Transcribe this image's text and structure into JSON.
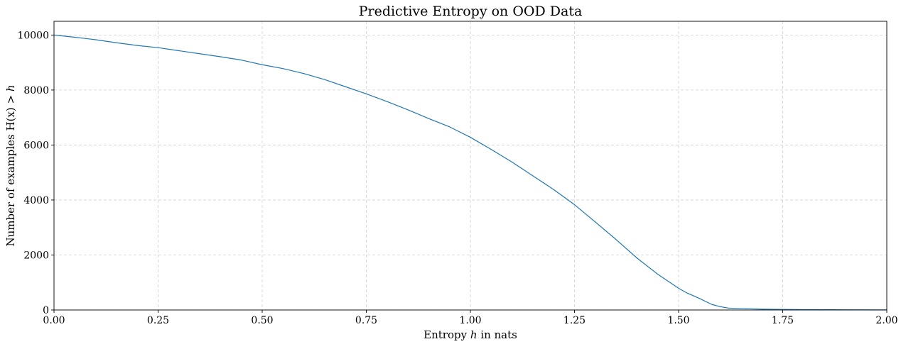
{
  "chart_data": {
    "type": "line",
    "title": "Predictive Entropy on OOD Data",
    "xlabel_prefix": "Entropy ",
    "xlabel_var": "h",
    "xlabel_suffix": " in nats",
    "ylabel_prefix": "Number of examples H(x) > ",
    "ylabel_var": "h",
    "xlim": [
      0,
      2.0
    ],
    "ylim": [
      0,
      10500
    ],
    "x_ticks": [
      0,
      0.25,
      0.5,
      0.75,
      1.0,
      1.25,
      1.5,
      1.75,
      2.0
    ],
    "x_tick_labels": [
      "0.00",
      "0.25",
      "0.50",
      "0.75",
      "1.00",
      "1.25",
      "1.50",
      "1.75",
      "2.00"
    ],
    "y_ticks": [
      0,
      2000,
      4000,
      6000,
      8000,
      10000
    ],
    "y_tick_labels": [
      "0",
      "2000",
      "4000",
      "6000",
      "8000",
      "10000"
    ],
    "grid": true,
    "series": [
      {
        "color": "#1f77b4",
        "x": [
          0.0,
          0.05,
          0.1,
          0.15,
          0.2,
          0.25,
          0.3,
          0.35,
          0.4,
          0.45,
          0.5,
          0.55,
          0.6,
          0.65,
          0.7,
          0.75,
          0.8,
          0.85,
          0.9,
          0.95,
          1.0,
          1.05,
          1.1,
          1.15,
          1.2,
          1.25,
          1.3,
          1.35,
          1.4,
          1.45,
          1.5,
          1.52,
          1.55,
          1.58,
          1.6,
          1.62,
          1.65,
          1.7,
          1.75,
          1.8,
          1.9,
          2.0
        ],
        "y": [
          10000,
          9920,
          9830,
          9720,
          9620,
          9540,
          9430,
          9320,
          9210,
          9090,
          8920,
          8780,
          8600,
          8380,
          8120,
          7860,
          7580,
          7280,
          6960,
          6660,
          6280,
          5840,
          5380,
          4880,
          4380,
          3830,
          3200,
          2560,
          1890,
          1300,
          790,
          620,
          420,
          200,
          120,
          70,
          50,
          30,
          20,
          15,
          8,
          5
        ]
      }
    ]
  }
}
